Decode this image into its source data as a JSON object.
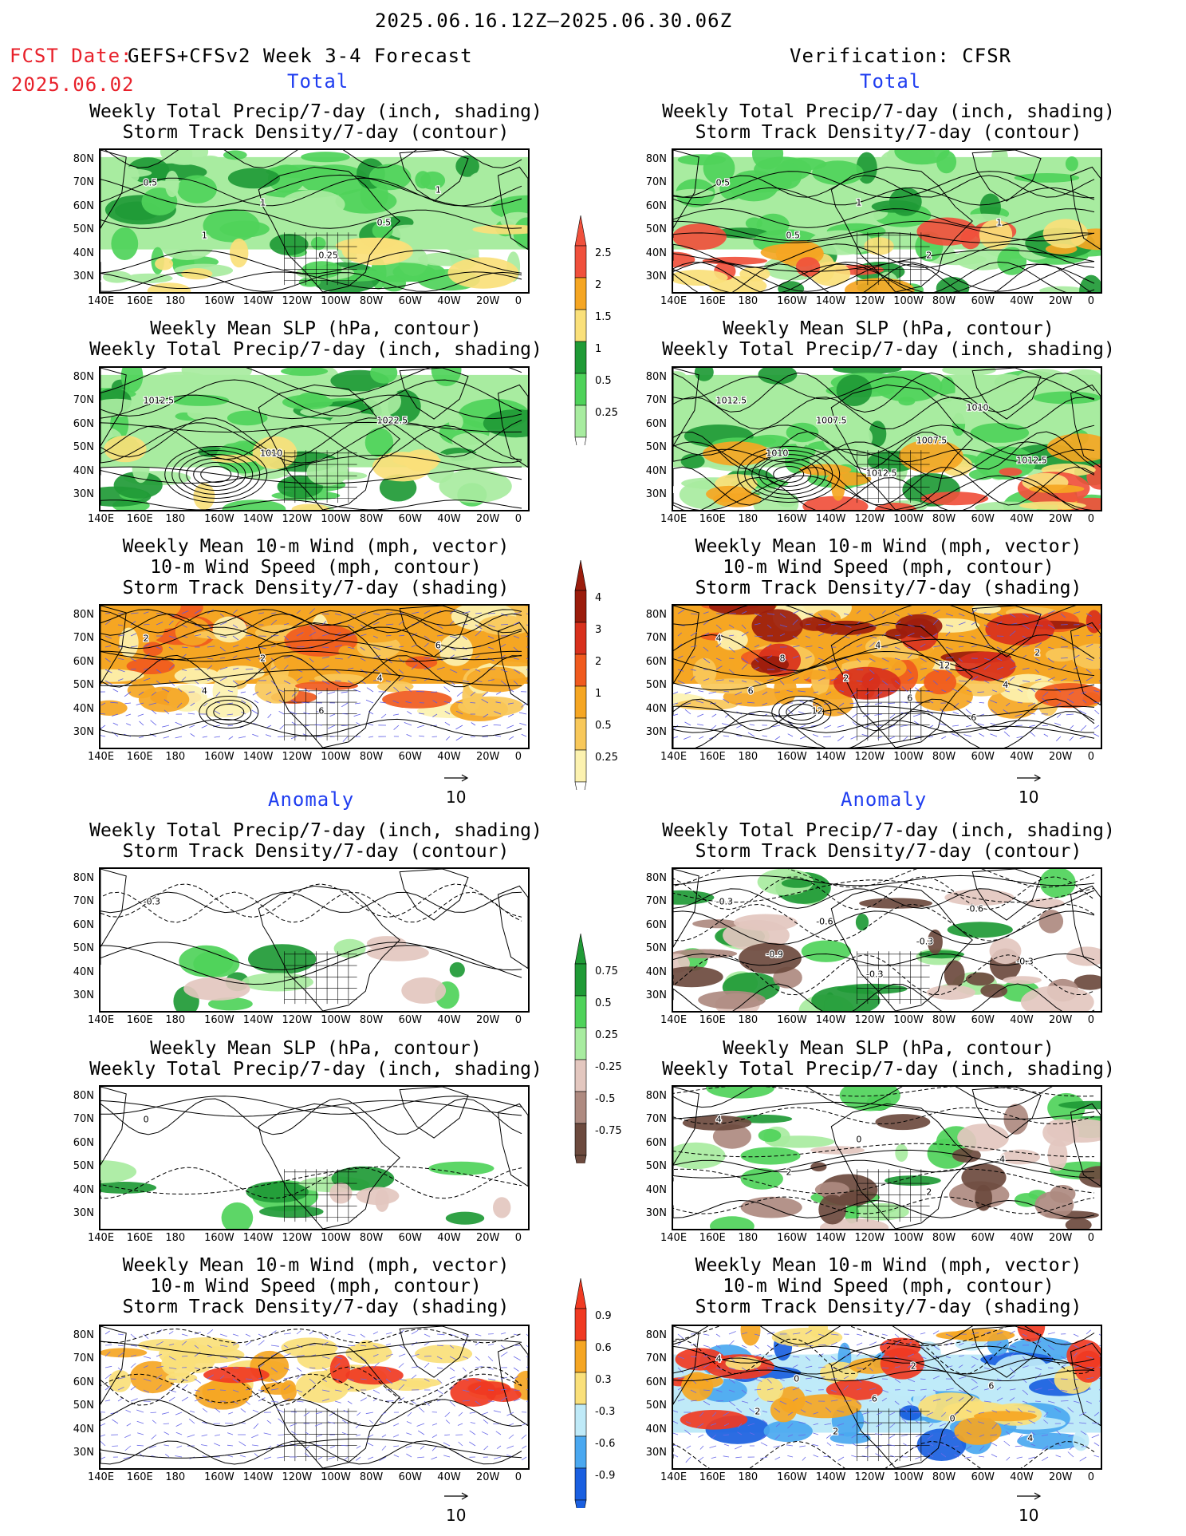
{
  "header": {
    "date_range": "2025.06.16.12Z—2025.06.30.06Z",
    "fcst_label": "FCST Date:",
    "fcst_model": "GEFS+CFSv2 Week 3-4 Forecast",
    "fcst_date": "2025.06.02",
    "verification": "Verification: CFSR",
    "total_left": "Total",
    "total_right": "Total",
    "anomaly_left": "Anomaly",
    "anomaly_right": "Anomaly"
  },
  "panel_titles": {
    "precip_storm": [
      "Weekly Total Precip/7-day (inch, shading)",
      "Storm Track Density/7-day (contour)"
    ],
    "slp_precip": [
      "Weekly Mean SLP (hPa, contour)",
      "Weekly Total Precip/7-day (inch, shading)"
    ],
    "wind_storm": [
      "Weekly Mean 10-m Wind (mph, vector)",
      "10-m Wind Speed (mph, contour)",
      "Storm Track Density/7-day (shading)"
    ]
  },
  "axes": {
    "lat_labels": [
      "80N",
      "70N",
      "60N",
      "50N",
      "40N",
      "30N"
    ],
    "lon_labels": [
      "140E",
      "160E",
      "180",
      "160W",
      "140W",
      "120W",
      "100W",
      "80W",
      "60W",
      "40W",
      "20W",
      "0"
    ]
  },
  "vector_ref": "10",
  "colorbars": {
    "precip_total": {
      "labels": [
        "2.5",
        "2",
        "1.5",
        "1",
        "0.5",
        "0.25"
      ],
      "colors": [
        "#f0503c",
        "#f5a623",
        "#fae07a",
        "#1f9a36",
        "#4fd25a",
        "#a8eca0"
      ]
    },
    "storm_total": {
      "labels": [
        "4",
        "3",
        "2",
        "1",
        "0.5",
        "0.25"
      ],
      "colors": [
        "#9b1c0c",
        "#d8301c",
        "#f05a1e",
        "#f5a623",
        "#f8c85a",
        "#fcf2b0"
      ]
    },
    "precip_anom": {
      "labels": [
        "0.75",
        "0.5",
        "0.25",
        "-0.25",
        "-0.5",
        "-0.75"
      ],
      "colors": [
        "#1f9a36",
        "#4fd25a",
        "#a8eca0",
        "#e3c7bf",
        "#ae8a80",
        "#6c4a3e"
      ]
    },
    "storm_anom": {
      "labels": [
        "0.9",
        "0.6",
        "0.3",
        "-0.3",
        "-0.6",
        "-0.9"
      ],
      "colors": [
        "#f03a22",
        "#f5a623",
        "#fae07a",
        "#bfeaf8",
        "#4aa8f0",
        "#1a5fe0"
      ]
    }
  },
  "contour_labels": {
    "p1L": [
      "0.5",
      "1",
      "1",
      "0.25",
      "0.5",
      "1"
    ],
    "p1R": [
      "0.5",
      "0.5",
      "1",
      "2",
      "1"
    ],
    "p2L": [
      "1012.5",
      "1010",
      "1022.5"
    ],
    "p2R": [
      "1012.5",
      "1010",
      "1007.5",
      "1012.5",
      "1007.5",
      "1010",
      "1012.5"
    ],
    "p3L": [
      "2",
      "4",
      "2",
      "6",
      "4",
      "6"
    ],
    "p3R": [
      "4",
      "6",
      "8",
      "12",
      "2",
      "4",
      "6",
      "12",
      "6",
      "4",
      "2"
    ],
    "p4L": [
      "-0.3"
    ],
    "p4R": [
      "-0.3",
      "-0.9",
      "-0.6",
      "-0.3",
      "-0.3",
      "-0.6",
      "-0.3"
    ],
    "p5L": [
      "0"
    ],
    "p5R": [
      "4",
      "2",
      "0",
      "2",
      "-4"
    ],
    "p6R": [
      "4",
      "2",
      "0",
      "2",
      "6",
      "2",
      "0",
      "6",
      "4"
    ]
  }
}
